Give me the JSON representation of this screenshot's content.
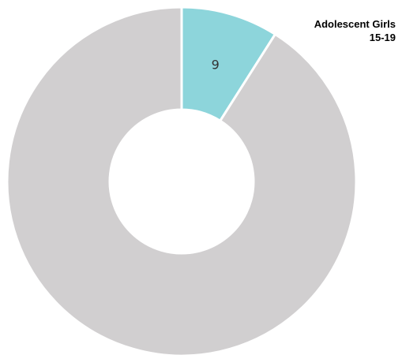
{
  "chart_data": {
    "type": "pie",
    "variant": "donut",
    "title_lines": [
      "Adolescent Girls",
      "15-19"
    ],
    "legend_position": "top-right",
    "start_angle_deg": 0,
    "slices": [
      {
        "label": "",
        "value": 9,
        "value_label": "9",
        "color": "#8dd5db",
        "highlight": true
      },
      {
        "label": "",
        "value": 91,
        "value_label": "",
        "color": "#d1cfd0",
        "highlight": false
      }
    ],
    "colors": {
      "highlight": "#8dd5db",
      "rest": "#d1cfd0",
      "separator": "#ffffff"
    }
  }
}
